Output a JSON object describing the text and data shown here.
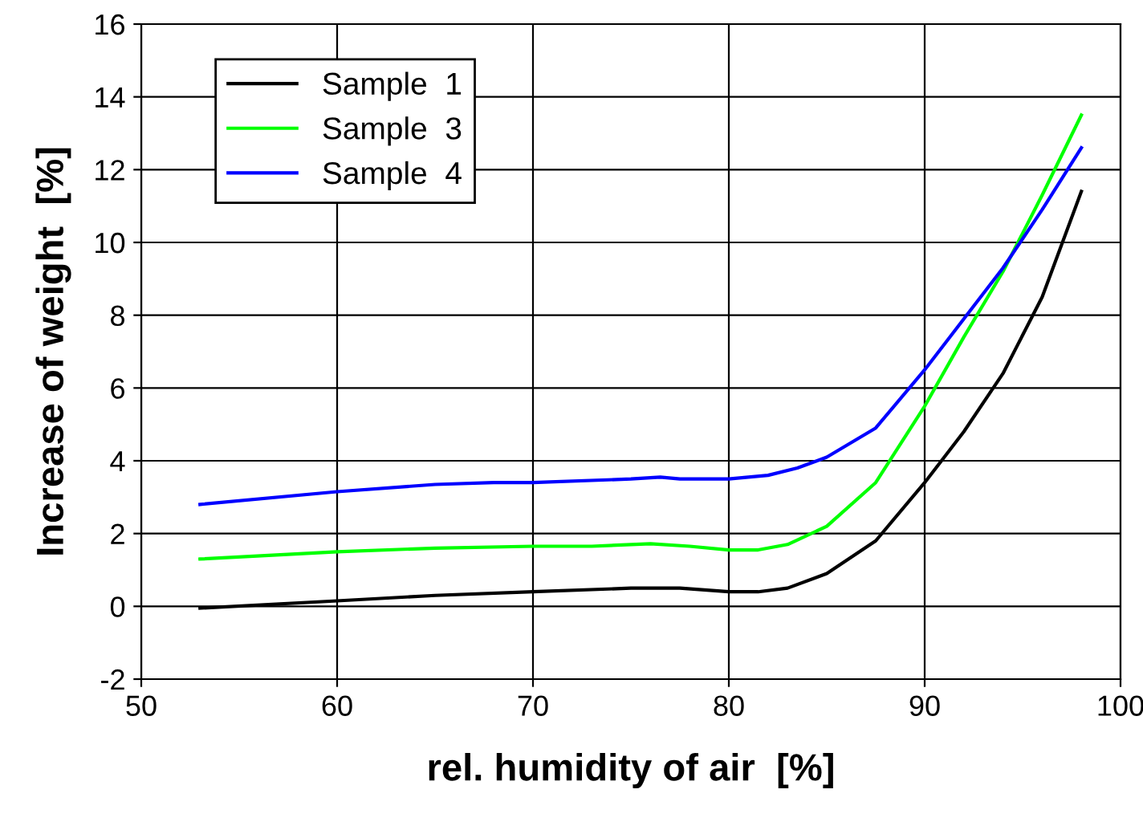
{
  "chart_data": {
    "type": "line",
    "xlabel": "rel. humidity of air  [%]",
    "ylabel": "Increase of weight  [%]",
    "xlim": [
      50,
      100
    ],
    "xticks": [
      50,
      60,
      70,
      80,
      90,
      100
    ],
    "ylim": [
      -2,
      16
    ],
    "yticks": [
      -2,
      0,
      2,
      4,
      6,
      8,
      10,
      12,
      14,
      16
    ],
    "grid": true,
    "legend": "top left",
    "marker": "none",
    "line_style": "solid",
    "series": [
      {
        "name": "Sample  1",
        "color": "#000000",
        "x": [
          53,
          60,
          65,
          70,
          75,
          77.5,
          80,
          81.5,
          83,
          85,
          87.5,
          90,
          92,
          94,
          96,
          98
        ],
        "values": [
          -0.05,
          0.15,
          0.3,
          0.4,
          0.5,
          0.5,
          0.4,
          0.4,
          0.5,
          0.9,
          1.8,
          3.4,
          4.8,
          6.4,
          8.5,
          11.4
        ]
      },
      {
        "name": "Sample  3",
        "color": "#00ff00",
        "x": [
          53,
          60,
          65,
          70,
          73,
          76,
          78,
          80,
          81.5,
          83,
          85,
          87.5,
          90,
          92,
          94,
          96,
          98
        ],
        "values": [
          1.3,
          1.5,
          1.6,
          1.65,
          1.65,
          1.72,
          1.65,
          1.55,
          1.55,
          1.7,
          2.2,
          3.4,
          5.5,
          7.4,
          9.2,
          11.3,
          13.5
        ]
      },
      {
        "name": "Sample  4",
        "color": "#0000ff",
        "x": [
          53,
          60,
          65,
          68,
          70,
          75,
          76.5,
          77.5,
          80,
          82,
          83.5,
          85,
          87.5,
          90,
          92,
          94,
          96,
          98
        ],
        "values": [
          2.8,
          3.15,
          3.35,
          3.4,
          3.4,
          3.5,
          3.55,
          3.5,
          3.5,
          3.6,
          3.8,
          4.1,
          4.9,
          6.5,
          7.9,
          9.3,
          10.9,
          12.6
        ]
      }
    ]
  }
}
